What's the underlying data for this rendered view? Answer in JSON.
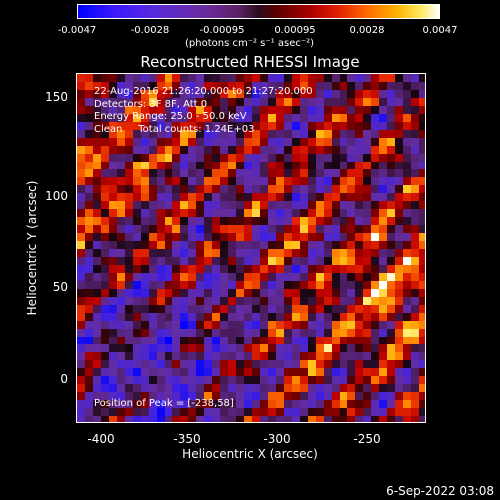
{
  "colorbar": {
    "ticks": [
      "-0.0047",
      "-0.0028",
      "-0.00095",
      "0.00095",
      "0.0028",
      "0.0047"
    ],
    "unit_label": "(photons cm⁻² s⁻¹ asec⁻²)"
  },
  "title": "Reconstructed RHESSI Image",
  "overlay": {
    "line1": "22-Aug-2016 21:26:20.000 to 21:27:20.000",
    "line2": "Detectors: 3F 8F, Att 0",
    "line3": "Energy Range: 25.0 - 50.0 keV",
    "line4": "Clean     Total counts: 1.24E+03",
    "peak": "Position of Peak = [-238,58]"
  },
  "axes": {
    "xlabel": "Heliocentric X (arcsec)",
    "ylabel": "Heliocentric Y (arcsec)",
    "xticks": [
      "-400",
      "-350",
      "-300",
      "-250"
    ],
    "yticks": [
      "150",
      "100",
      "50",
      "0"
    ]
  },
  "footer": "6-Sep-2022 03:08"
}
